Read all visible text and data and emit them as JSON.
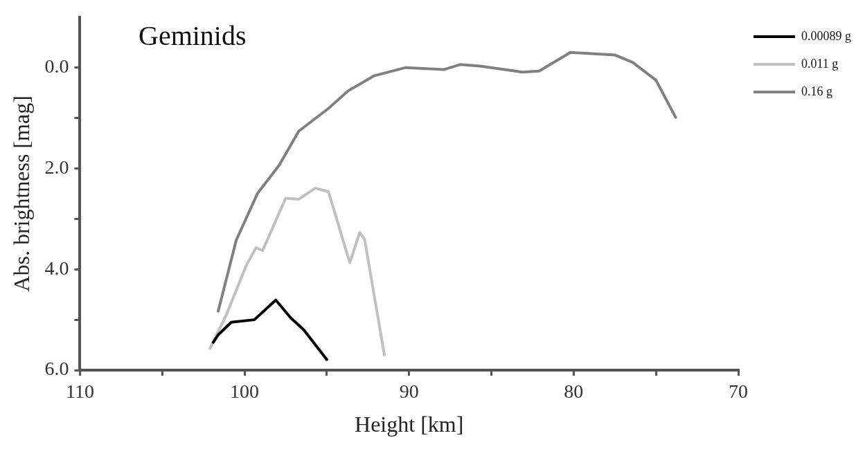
{
  "chart_data": {
    "type": "line",
    "title": "Geminids",
    "xlabel": "Height [km]",
    "ylabel": "Abs. brightness [mag]",
    "xlim": [
      110,
      70
    ],
    "ylim": [
      6,
      -1
    ],
    "xticks": [
      110,
      {
        "value": 105,
        "label": null
      },
      100,
      {
        "value": 95,
        "label": null
      },
      90,
      {
        "value": 85,
        "label": null
      },
      80,
      {
        "value": 75,
        "label": null
      },
      70
    ],
    "yticks": [
      {
        "value": 0,
        "label": "0.0"
      },
      {
        "value": 1,
        "label": null
      },
      {
        "value": 2,
        "label": "2.0"
      },
      {
        "value": 3,
        "label": null
      },
      {
        "value": 4,
        "label": "4.0"
      },
      {
        "value": 5,
        "label": null
      },
      {
        "value": 6,
        "label": "6.0"
      }
    ],
    "grid": false,
    "legend": "right",
    "marker": "none",
    "line_style": "solid",
    "series": [
      {
        "name": "0.00089 g",
        "color": "#000000",
        "x": [
          101.9,
          101.6,
          100.8,
          99.4,
          98.1,
          97.2,
          96.4,
          95.0
        ],
        "values": [
          5.45,
          5.3,
          5.05,
          5.0,
          4.61,
          4.96,
          5.2,
          5.79
        ]
      },
      {
        "name": "0.011 g",
        "color": "#c0c0c0",
        "x": [
          102.1,
          101.1,
          99.9,
          99.3,
          98.9,
          97.5,
          96.7,
          95.7,
          94.9,
          93.6,
          93.0,
          92.7,
          91.5
        ],
        "values": [
          5.57,
          4.9,
          3.93,
          3.57,
          3.63,
          2.59,
          2.61,
          2.39,
          2.46,
          3.87,
          3.27,
          3.41,
          5.7
        ]
      },
      {
        "name": "0.16 g",
        "color": "#808080",
        "x": [
          101.6,
          100.5,
          99.2,
          97.9,
          96.7,
          94.9,
          93.7,
          92.1,
          90.2,
          87.9,
          86.9,
          85.7,
          83.1,
          82.1,
          80.2,
          77.5,
          76.4,
          75.0,
          73.8
        ],
        "values": [
          4.83,
          3.42,
          2.49,
          1.94,
          1.26,
          0.81,
          0.46,
          0.16,
          0.0,
          0.04,
          -0.06,
          -0.03,
          0.09,
          0.07,
          -0.3,
          -0.25,
          -0.1,
          0.25,
          0.99
        ]
      }
    ]
  }
}
